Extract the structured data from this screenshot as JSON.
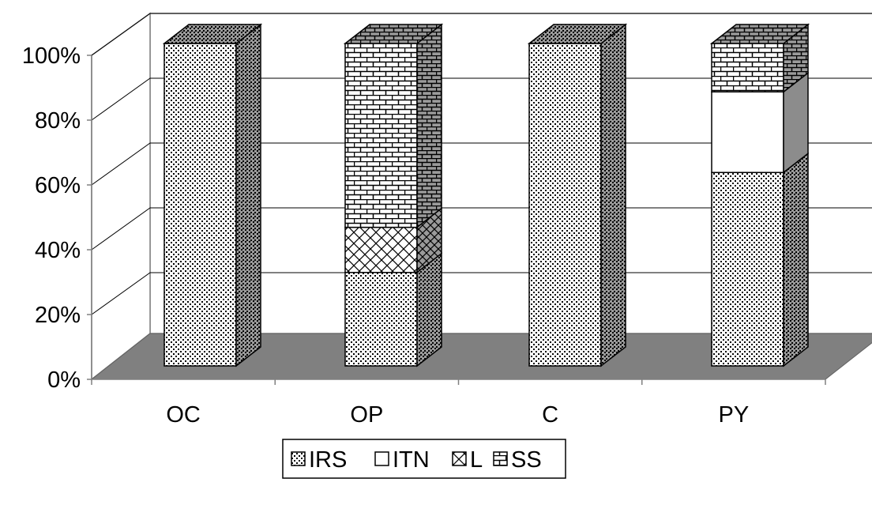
{
  "chart_data": {
    "type": "bar",
    "stacked": true,
    "percent_stacked": true,
    "three_d": true,
    "categories": [
      "OC",
      "OP",
      "C",
      "PY"
    ],
    "series": [
      {
        "name": "IRS",
        "values": [
          100,
          29,
          100,
          60
        ],
        "fill": "dots"
      },
      {
        "name": "ITN",
        "values": [
          0,
          0,
          0,
          25
        ],
        "fill": "white"
      },
      {
        "name": "L",
        "values": [
          0,
          14,
          0,
          0
        ],
        "fill": "crosshatch"
      },
      {
        "name": "SS",
        "values": [
          0,
          57,
          0,
          15
        ],
        "fill": "brick"
      }
    ],
    "ylim": [
      0,
      100
    ],
    "yticks": [
      "0%",
      "20%",
      "40%",
      "60%",
      "80%",
      "100%"
    ],
    "grid": true,
    "legend_position": "bottom",
    "colors": {
      "wall": "#ffffff",
      "floor": "#808080",
      "grid": "#000000"
    }
  }
}
